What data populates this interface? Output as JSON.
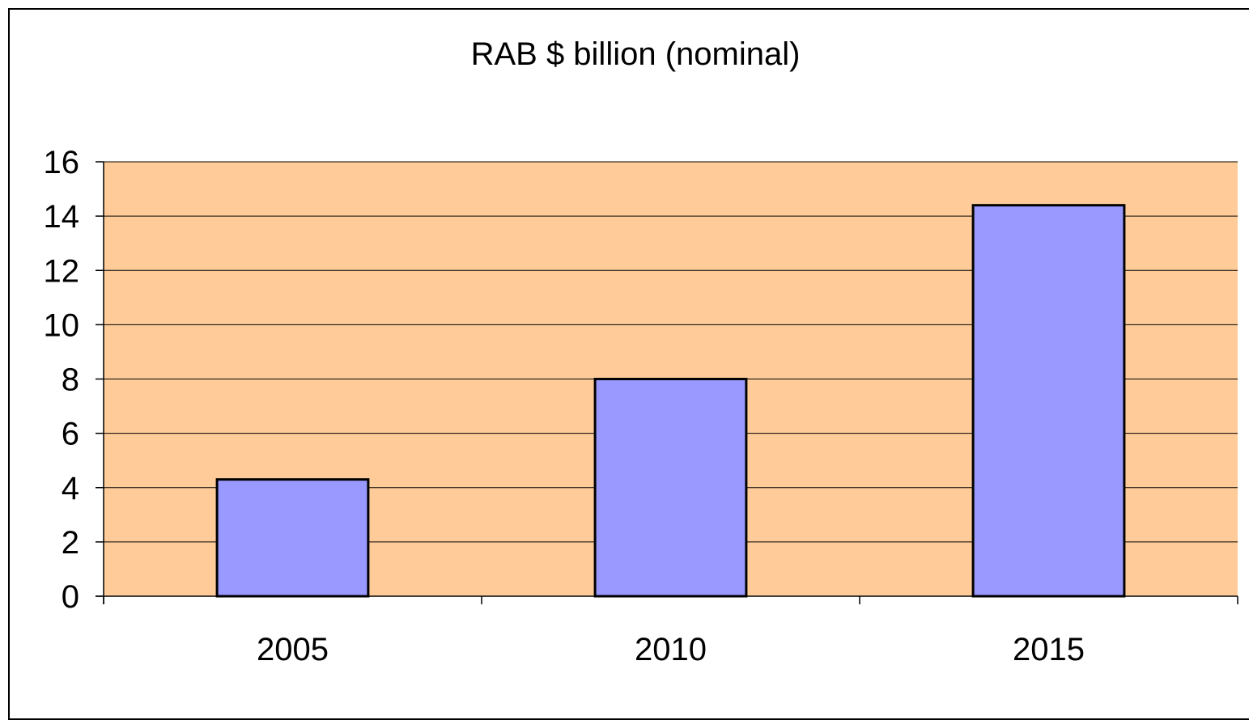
{
  "chart_data": {
    "type": "bar",
    "title": "RAB $ billion (nominal)",
    "xlabel": "",
    "ylabel": "",
    "categories": [
      "2005",
      "2010",
      "2015"
    ],
    "values": [
      4.3,
      8.0,
      14.4
    ],
    "ylim": [
      0,
      16
    ],
    "yticks": [
      "0",
      "2",
      "4",
      "6",
      "8",
      "10",
      "12",
      "14",
      "16"
    ],
    "grid": true,
    "legend": "none",
    "colors": {
      "bar": "#9999ff",
      "plot_background": "#ffcc99",
      "bar_border": "#000000",
      "gridline": "#000000"
    }
  }
}
